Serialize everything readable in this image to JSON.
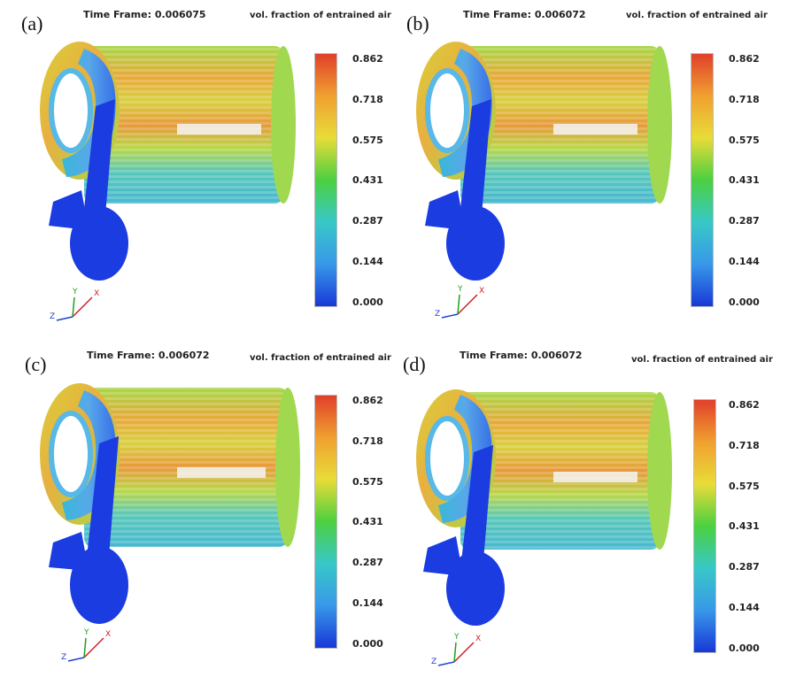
{
  "legend_title": "vol. fraction of entrained air",
  "colorbar": {
    "ticks": [
      "0.862",
      "0.718",
      "0.575",
      "0.431",
      "0.287",
      "0.144",
      "0.000"
    ],
    "colors": [
      "#e0402a",
      "#f0a030",
      "#e8dc38",
      "#4cd040",
      "#38c8c8",
      "#3898e8",
      "#1838d8"
    ]
  },
  "axes_labels": {
    "x": "X",
    "y": "Y",
    "z": "Z"
  },
  "panels": [
    {
      "label": "(a)",
      "time_frame": "Time Frame: 0.006075"
    },
    {
      "label": "(b)",
      "time_frame": "Time Frame: 0.006072"
    },
    {
      "label": "(c)",
      "time_frame": "Time Frame: 0.006072"
    },
    {
      "label": "(d)",
      "time_frame": "Time Frame: 0.006072"
    }
  ]
}
